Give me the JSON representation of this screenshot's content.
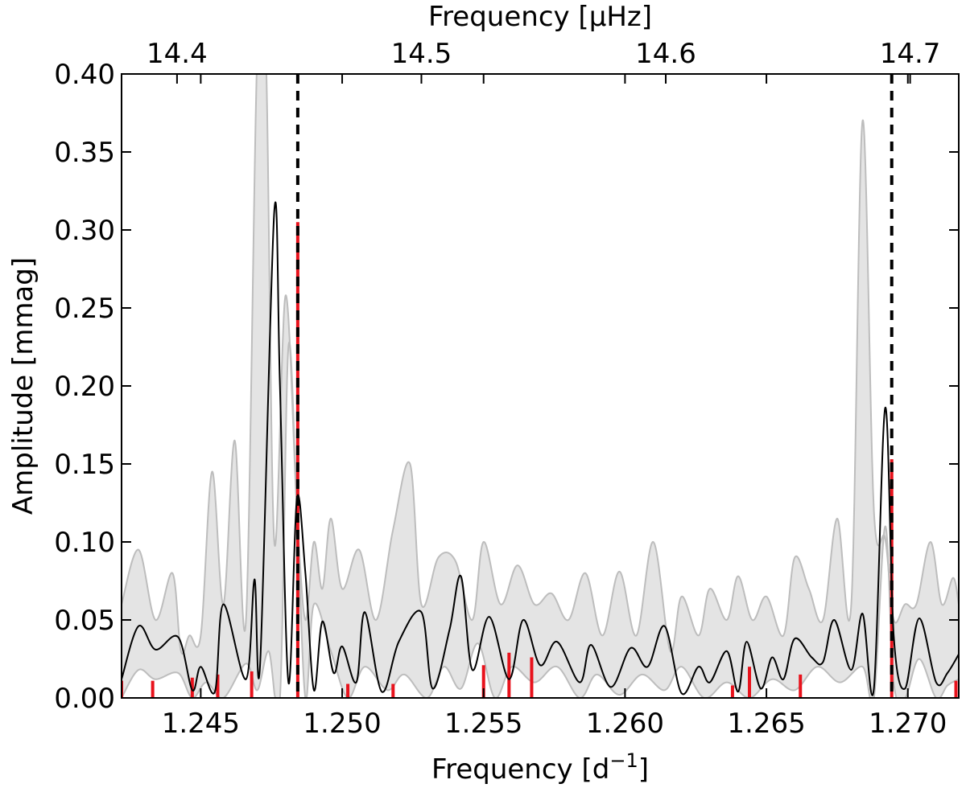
{
  "chart_data": {
    "type": "line",
    "xlabel": "Frequency [d",
    "xlabel_sup": "−1",
    "xlabel_end": "]",
    "x2label": "Frequency [μHz]",
    "ylabel": "Amplitude [mmag]",
    "xlim": [
      1.2422,
      1.2718
    ],
    "ylim": [
      0,
      0.4
    ],
    "x2lim": [
      14.3773,
      14.7199
    ],
    "xticks": [
      1.245,
      1.25,
      1.255,
      1.26,
      1.265,
      1.27
    ],
    "xtick_labels": [
      "1.245",
      "1.250",
      "1.255",
      "1.260",
      "1.265",
      "1.270"
    ],
    "x2ticks": [
      14.4,
      14.5,
      14.6,
      14.7
    ],
    "x2tick_labels": [
      "14.4",
      "14.5",
      "14.6",
      "14.7"
    ],
    "yticks": [
      0,
      0.05,
      0.1,
      0.15,
      0.2,
      0.25,
      0.3,
      0.35,
      0.4
    ],
    "ytick_labels": [
      "0.00",
      "0.05",
      "0.10",
      "0.15",
      "0.20",
      "0.25",
      "0.30",
      "0.35",
      "0.40"
    ],
    "grid": false,
    "dashed_lines_x": [
      1.24843,
      1.26943
    ],
    "colors": {
      "mean": "#000000",
      "band_fill": "#e4e4e4",
      "band_edge": "#bdbdbd",
      "sticks": "#e8121c",
      "dashed": "#000000"
    },
    "mean_curve": {
      "x": [
        1.2422,
        1.2428,
        1.2434,
        1.2442,
        1.2447,
        1.245,
        1.2455,
        1.2458,
        1.2466,
        1.2469,
        1.2471,
        1.2476,
        1.2478,
        1.2481,
        1.2484,
        1.2487,
        1.249,
        1.2493,
        1.2497,
        1.25,
        1.2505,
        1.2508,
        1.2514,
        1.252,
        1.2528,
        1.2532,
        1.2538,
        1.2542,
        1.2546,
        1.2552,
        1.2559,
        1.2564,
        1.257,
        1.2576,
        1.2584,
        1.2588,
        1.2595,
        1.2602,
        1.2608,
        1.2614,
        1.262,
        1.2626,
        1.263,
        1.2636,
        1.264,
        1.2643,
        1.2648,
        1.2652,
        1.2656,
        1.266,
        1.2666,
        1.267,
        1.2674,
        1.268,
        1.2684,
        1.2688,
        1.2692,
        1.2695,
        1.2699,
        1.2704,
        1.271,
        1.2714,
        1.2718
      ],
      "y": [
        0.012,
        0.046,
        0.031,
        0.039,
        0.005,
        0.02,
        0.004,
        0.06,
        0.012,
        0.076,
        0.022,
        0.312,
        0.2,
        0.01,
        0.128,
        0.08,
        0.005,
        0.049,
        0.016,
        0.033,
        0.01,
        0.055,
        0.004,
        0.036,
        0.055,
        0.006,
        0.044,
        0.078,
        0.018,
        0.052,
        0.012,
        0.05,
        0.021,
        0.036,
        0.01,
        0.034,
        0.007,
        0.032,
        0.02,
        0.046,
        0.003,
        0.02,
        0.01,
        0.03,
        0.004,
        0.036,
        0.006,
        0.026,
        0.012,
        0.038,
        0.026,
        0.023,
        0.05,
        0.018,
        0.054,
        0.006,
        0.186,
        0.04,
        0.006,
        0.051,
        0.01,
        0.016,
        0.028
      ]
    },
    "band_upper": {
      "x": [
        1.2422,
        1.2428,
        1.2434,
        1.244,
        1.2443,
        1.2446,
        1.245,
        1.2454,
        1.2458,
        1.2462,
        1.2466,
        1.247,
        1.2473,
        1.2476,
        1.248,
        1.2484,
        1.2487,
        1.249,
        1.2493,
        1.2496,
        1.25,
        1.2506,
        1.2512,
        1.2518,
        1.2524,
        1.2528,
        1.2534,
        1.254,
        1.2546,
        1.255,
        1.2556,
        1.2562,
        1.2568,
        1.2574,
        1.258,
        1.2586,
        1.2592,
        1.2598,
        1.2604,
        1.261,
        1.2616,
        1.262,
        1.2626,
        1.263,
        1.2636,
        1.264,
        1.2645,
        1.265,
        1.2656,
        1.266,
        1.2665,
        1.267,
        1.2675,
        1.268,
        1.2684,
        1.2688,
        1.2692,
        1.2695,
        1.2699,
        1.2703,
        1.2708,
        1.2712,
        1.2716,
        1.2718
      ],
      "y": [
        0.06,
        0.095,
        0.05,
        0.08,
        0.03,
        0.04,
        0.04,
        0.145,
        0.06,
        0.165,
        0.05,
        0.415,
        0.415,
        0.1,
        0.258,
        0.12,
        0.05,
        0.1,
        0.07,
        0.115,
        0.07,
        0.095,
        0.05,
        0.108,
        0.15,
        0.06,
        0.09,
        0.088,
        0.05,
        0.1,
        0.06,
        0.085,
        0.06,
        0.067,
        0.05,
        0.08,
        0.04,
        0.081,
        0.04,
        0.1,
        0.03,
        0.065,
        0.04,
        0.07,
        0.05,
        0.078,
        0.05,
        0.065,
        0.04,
        0.09,
        0.07,
        0.05,
        0.115,
        0.06,
        0.37,
        0.12,
        0.102,
        0.05,
        0.06,
        0.06,
        0.1,
        0.06,
        0.077,
        0.06
      ]
    },
    "band_lower": {
      "x": [
        1.2422,
        1.2428,
        1.2434,
        1.2442,
        1.2447,
        1.2452,
        1.2458,
        1.2466,
        1.247,
        1.2474,
        1.2478,
        1.2481,
        1.2484,
        1.2487,
        1.249,
        1.2496,
        1.2502,
        1.2508,
        1.2516,
        1.2522,
        1.253,
        1.2536,
        1.2542,
        1.2548,
        1.2554,
        1.256,
        1.2568,
        1.2576,
        1.2584,
        1.259,
        1.2598,
        1.2606,
        1.2614,
        1.262,
        1.2628,
        1.2636,
        1.2644,
        1.2652,
        1.266,
        1.2668,
        1.2676,
        1.2684,
        1.2688,
        1.2692,
        1.2695,
        1.2699,
        1.2704,
        1.271,
        1.2714,
        1.2718
      ],
      "y": [
        0.0,
        0.018,
        0.012,
        0.016,
        0.0,
        0.01,
        0.0,
        0.022,
        0.005,
        0.03,
        0.0,
        0.225,
        0.12,
        0.0,
        0.06,
        0.03,
        0.0,
        0.02,
        0.005,
        0.015,
        0.0,
        0.02,
        0.006,
        0.035,
        0.0,
        0.02,
        0.01,
        0.02,
        0.0,
        0.015,
        0.002,
        0.015,
        0.005,
        0.02,
        0.0,
        0.01,
        0.0,
        0.012,
        0.005,
        0.02,
        0.01,
        0.02,
        0.0,
        0.11,
        0.01,
        0.0,
        0.025,
        0.0,
        0.008,
        0.012
      ]
    },
    "sticks": {
      "x": [
        1.2422,
        1.2433,
        1.2447,
        1.2456,
        1.2468,
        1.24843,
        1.2502,
        1.2518,
        1.255,
        1.2559,
        1.2567,
        1.2638,
        1.2644,
        1.2662,
        1.26943,
        1.2717
      ],
      "y": [
        0.011,
        0.011,
        0.013,
        0.015,
        0.017,
        0.305,
        0.009,
        0.009,
        0.021,
        0.029,
        0.026,
        0.008,
        0.02,
        0.015,
        0.153,
        0.011
      ]
    }
  }
}
